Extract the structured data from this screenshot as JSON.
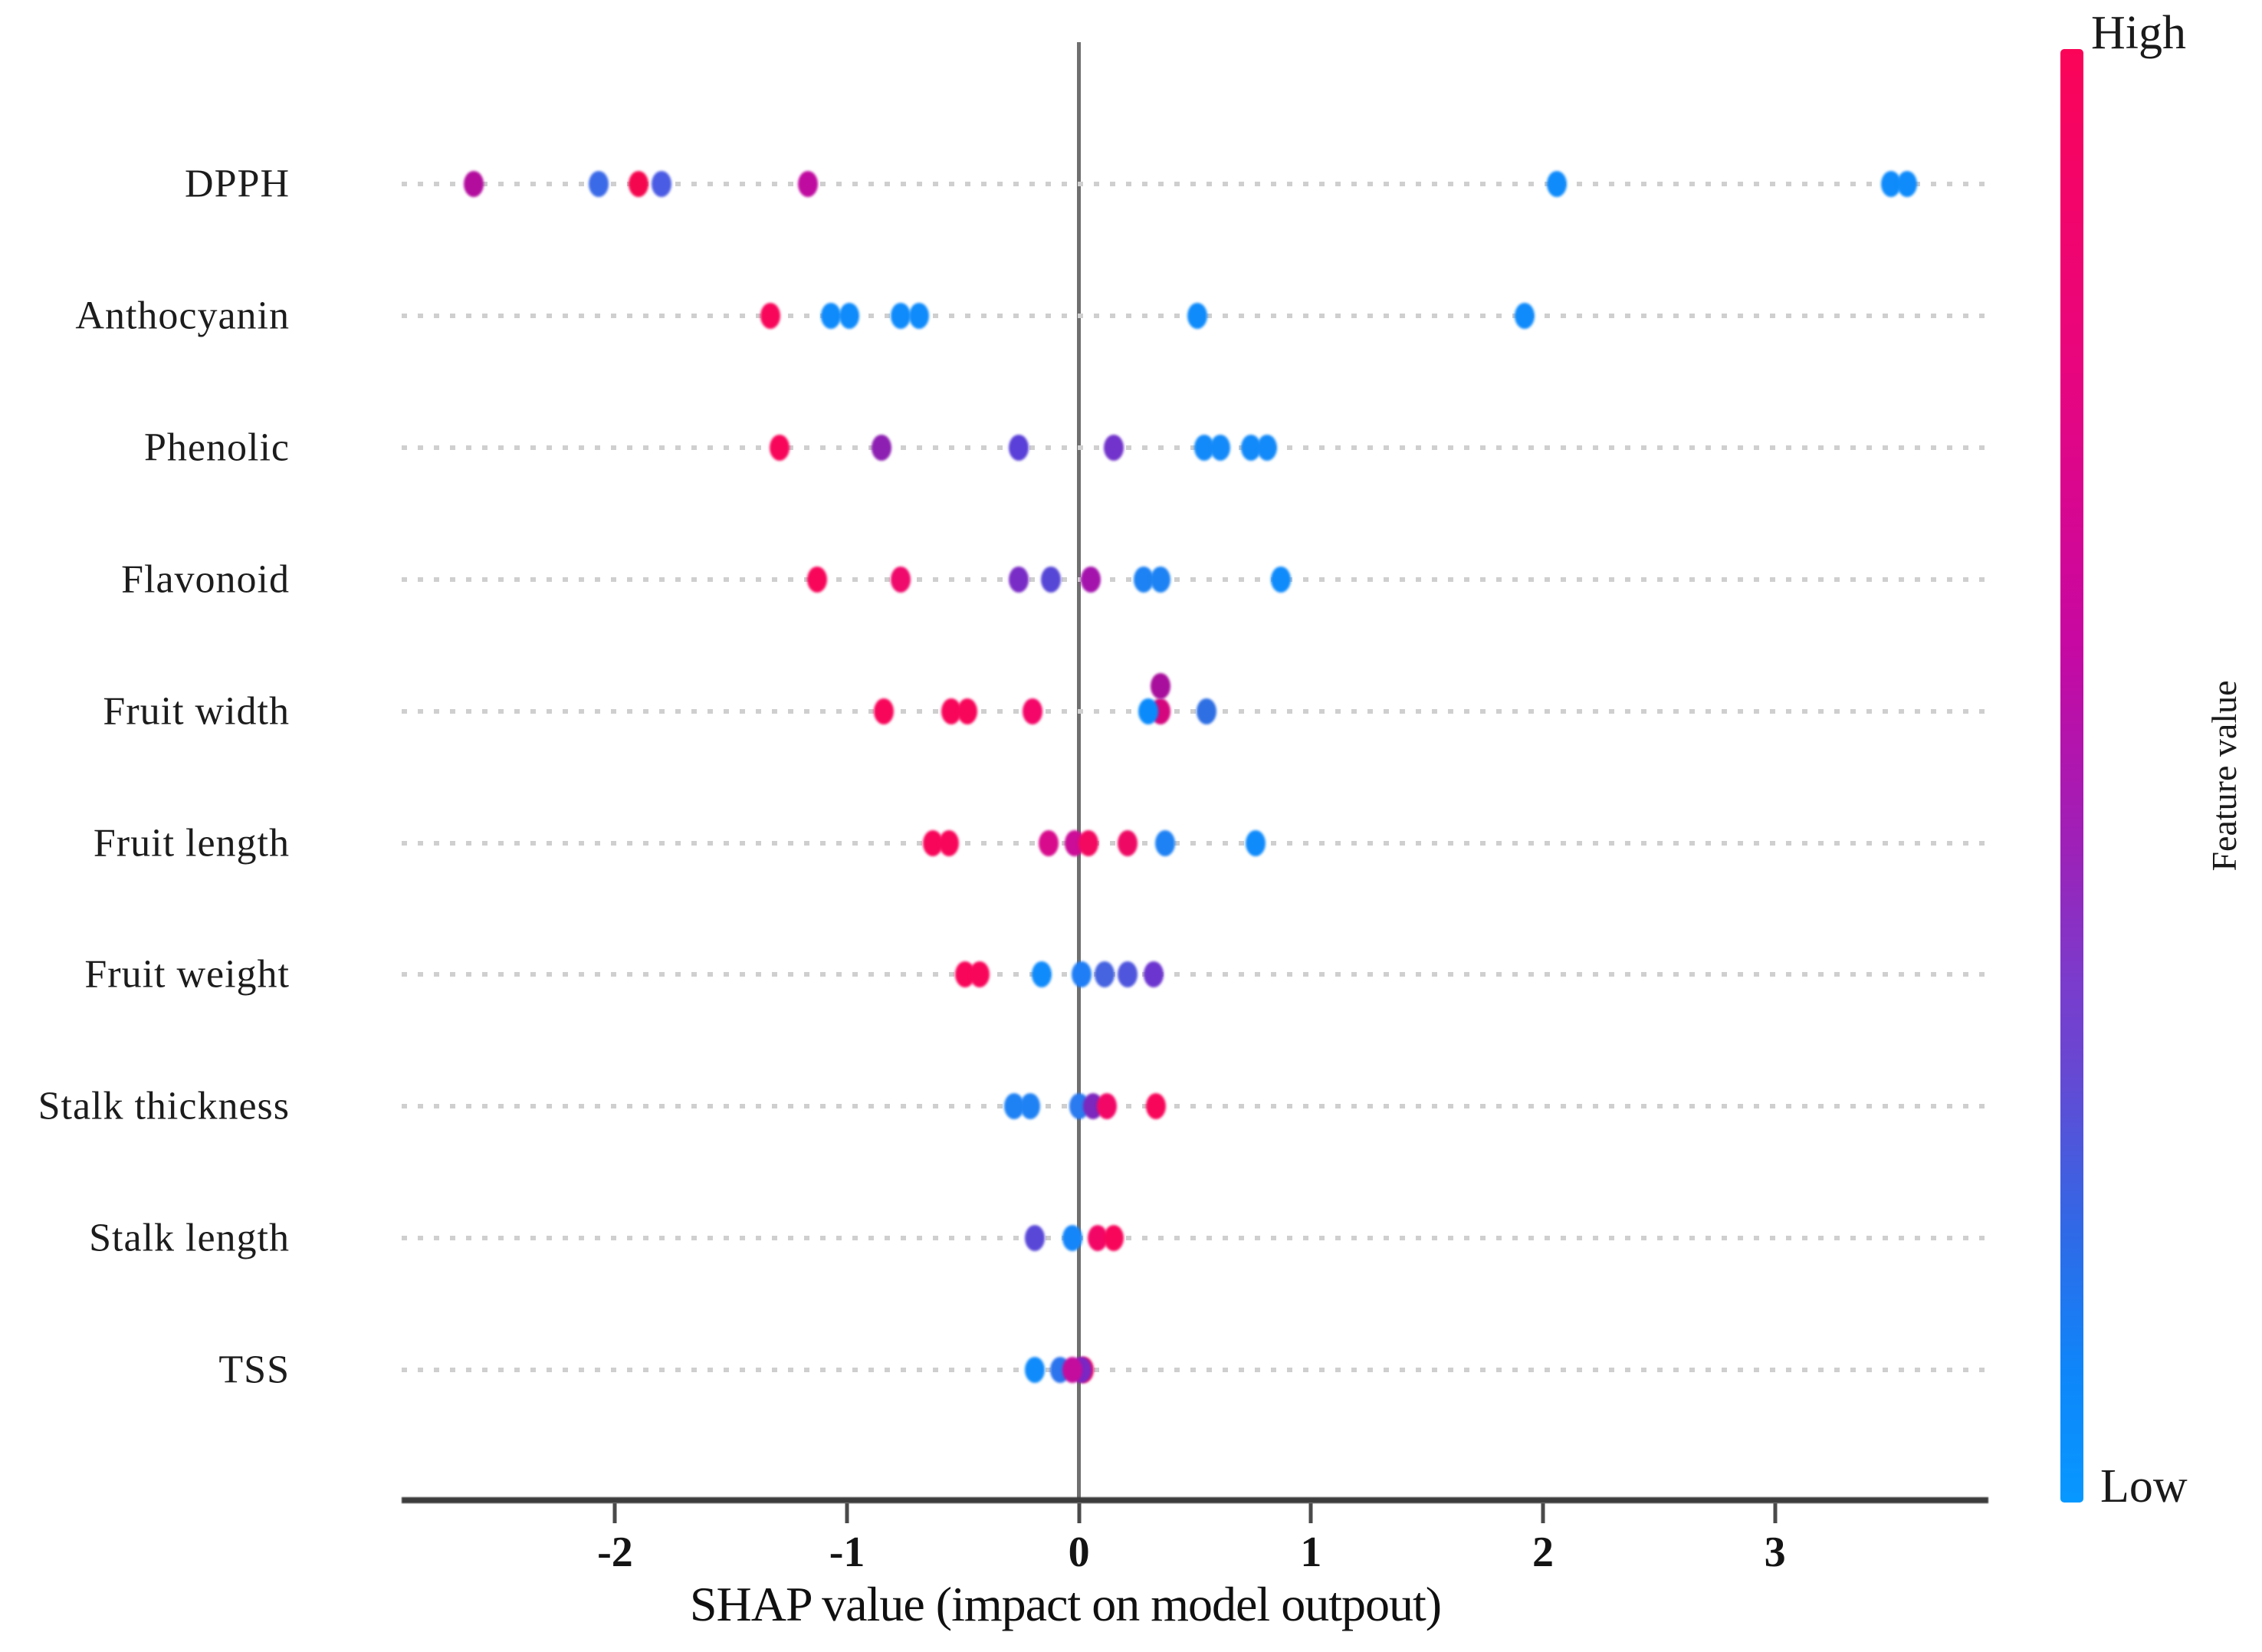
{
  "chart_data": {
    "type": "scatter",
    "subtype": "shap-beeswarm-summary",
    "title": "",
    "xlabel": "SHAP value (impact on model outpout)",
    "ylabel": "",
    "xlim": [
      -2.92,
      3.92
    ],
    "grid": false,
    "row_guide_style": "dotted-gray",
    "xticks": [
      {
        "value": -2,
        "label": "-2"
      },
      {
        "value": -1,
        "label": "-1"
      },
      {
        "value": 0,
        "label": "0"
      },
      {
        "value": 1,
        "label": "1"
      },
      {
        "value": 2,
        "label": "2"
      },
      {
        "value": 3,
        "label": "3"
      }
    ],
    "colorbar": {
      "high_label": "High",
      "low_label": "Low",
      "title": "Feature value",
      "high_color": "#fb0458",
      "mid_color": "#9d21b8",
      "low_color": "#0798ff",
      "position": "right"
    },
    "features": [
      {
        "name": "DPPH",
        "points": [
          {
            "x": -2.61,
            "color": "#b30d9e"
          },
          {
            "x": -2.07,
            "color": "#3b6ae8"
          },
          {
            "x": -1.9,
            "color": "#f5074f"
          },
          {
            "x": -1.8,
            "color": "#4b5ce4"
          },
          {
            "x": -1.17,
            "color": "#c00ba0"
          },
          {
            "x": 2.06,
            "color": "#0f8bfb"
          },
          {
            "x": 3.5,
            "color": "#0f8bfb"
          },
          {
            "x": 3.57,
            "color": "#0f8bfb"
          }
        ]
      },
      {
        "name": "Anthocyanin",
        "points": [
          {
            "x": -1.33,
            "color": "#f8065a"
          },
          {
            "x": -1.07,
            "color": "#0f8bfb"
          },
          {
            "x": -0.99,
            "color": "#0f8bfb"
          },
          {
            "x": -0.77,
            "color": "#0f8bfb"
          },
          {
            "x": -0.69,
            "color": "#0f8bfb"
          },
          {
            "x": 0.51,
            "color": "#0f8bfb"
          },
          {
            "x": 1.92,
            "color": "#0f8bfb"
          }
        ]
      },
      {
        "name": "Phenolic",
        "points": [
          {
            "x": -1.29,
            "color": "#f8065a"
          },
          {
            "x": -0.85,
            "color": "#8d1fb2"
          },
          {
            "x": -0.26,
            "color": "#5a3fd8"
          },
          {
            "x": 0.15,
            "color": "#7133cb"
          },
          {
            "x": 0.54,
            "color": "#138af9"
          },
          {
            "x": 0.61,
            "color": "#138af9"
          },
          {
            "x": 0.74,
            "color": "#138af9"
          },
          {
            "x": 0.81,
            "color": "#138af9"
          }
        ]
      },
      {
        "name": "Flavonoid",
        "points": [
          {
            "x": -1.13,
            "color": "#f8065a"
          },
          {
            "x": -0.77,
            "color": "#ef0a6b"
          },
          {
            "x": -0.26,
            "color": "#7a2cc6"
          },
          {
            "x": -0.12,
            "color": "#5747d7"
          },
          {
            "x": 0.05,
            "color": "#a414ad"
          },
          {
            "x": 0.28,
            "color": "#1d82f3"
          },
          {
            "x": 0.35,
            "color": "#1d82f3"
          },
          {
            "x": 0.87,
            "color": "#0f8bfb"
          }
        ]
      },
      {
        "name": "Fruit width",
        "points": [
          {
            "x": -0.84,
            "color": "#f8065a"
          },
          {
            "x": -0.55,
            "color": "#f8065a"
          },
          {
            "x": -0.48,
            "color": "#f8065a"
          },
          {
            "x": -0.2,
            "color": "#f40768"
          },
          {
            "x": 0.35,
            "color": "#d5077e"
          },
          {
            "x": 0.3,
            "color": "#0b8bfb"
          },
          {
            "x": 0.35,
            "dy": -33,
            "color": "#a80f9c"
          },
          {
            "x": 0.55,
            "color": "#2e6fe3"
          }
        ]
      },
      {
        "name": "Fruit length",
        "points": [
          {
            "x": -0.63,
            "color": "#f8065a"
          },
          {
            "x": -0.56,
            "color": "#f8065a"
          },
          {
            "x": -0.13,
            "color": "#d80b8c"
          },
          {
            "x": -0.02,
            "color": "#cb0d97"
          },
          {
            "x": 0.04,
            "color": "#f3095f"
          },
          {
            "x": 0.21,
            "color": "#ee0a64"
          },
          {
            "x": 0.37,
            "color": "#1f82f4"
          },
          {
            "x": 0.76,
            "color": "#0f8bfb"
          }
        ]
      },
      {
        "name": "Fruit weight",
        "points": [
          {
            "x": -0.49,
            "color": "#f8065a"
          },
          {
            "x": -0.43,
            "color": "#f8065a"
          },
          {
            "x": -0.16,
            "color": "#0f8bfb"
          },
          {
            "x": 0.01,
            "color": "#1f7ef6"
          },
          {
            "x": 0.11,
            "color": "#4663e0"
          },
          {
            "x": 0.21,
            "color": "#4f55dd"
          },
          {
            "x": 0.32,
            "color": "#6d35d0"
          }
        ]
      },
      {
        "name": "Stalk thickness",
        "points": [
          {
            "x": -0.28,
            "color": "#1f82f4"
          },
          {
            "x": -0.21,
            "color": "#1f82f4"
          },
          {
            "x": 0.0,
            "color": "#2a7af0"
          },
          {
            "x": 0.06,
            "color": "#7c27bd"
          },
          {
            "x": 0.12,
            "color": "#f30766"
          },
          {
            "x": 0.33,
            "color": "#f8065a"
          }
        ]
      },
      {
        "name": "Stalk length",
        "points": [
          {
            "x": -0.19,
            "color": "#5948d8"
          },
          {
            "x": -0.03,
            "color": "#1486fa"
          },
          {
            "x": 0.08,
            "color": "#f30766"
          },
          {
            "x": 0.15,
            "color": "#f8065a"
          }
        ]
      },
      {
        "name": "TSS",
        "points": [
          {
            "x": -0.19,
            "color": "#0f8bfb"
          },
          {
            "x": -0.08,
            "color": "#2b74ee"
          },
          {
            "x": 0.02,
            "color": "#ee0a64"
          },
          {
            "x": 0.01,
            "color": "#7a27c4"
          },
          {
            "x": -0.03,
            "color": "#c40d9d"
          }
        ]
      }
    ]
  }
}
